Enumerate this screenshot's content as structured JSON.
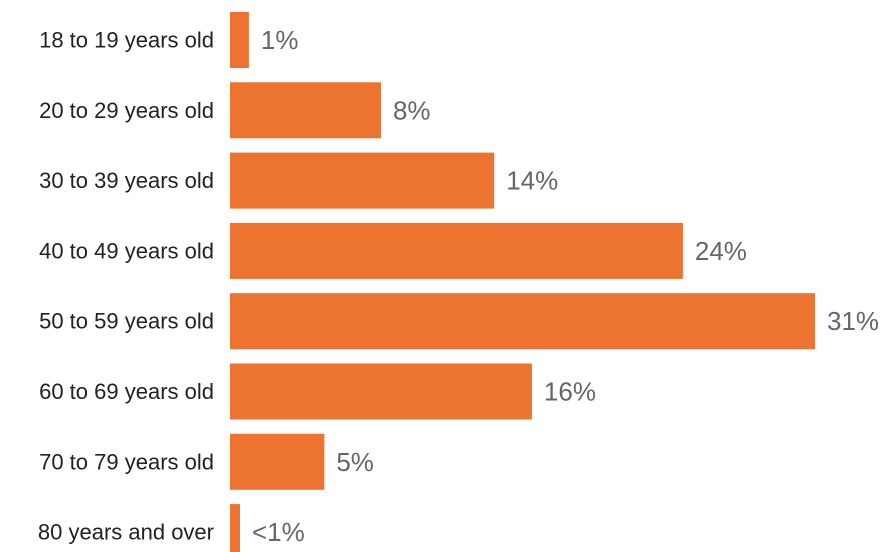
{
  "chart_data": {
    "type": "bar",
    "orientation": "horizontal",
    "categories": [
      "18 to 19 years old",
      "20 to 29 years old",
      "30 to 39 years old",
      "40 to 49 years old",
      "50 to 59 years old",
      "60 to 69 years old",
      "70 to 79 years old",
      "80 years and over"
    ],
    "values": [
      1,
      8,
      14,
      24,
      31,
      16,
      5,
      0.5
    ],
    "value_labels": [
      "1%",
      "8%",
      "14%",
      "24%",
      "31%",
      "16%",
      "5%",
      "<1%"
    ],
    "title": "",
    "xlabel": "",
    "ylabel": "",
    "xlim": [
      0,
      31
    ],
    "grid": false,
    "legend": "none",
    "bar_color": "#ED7330"
  }
}
